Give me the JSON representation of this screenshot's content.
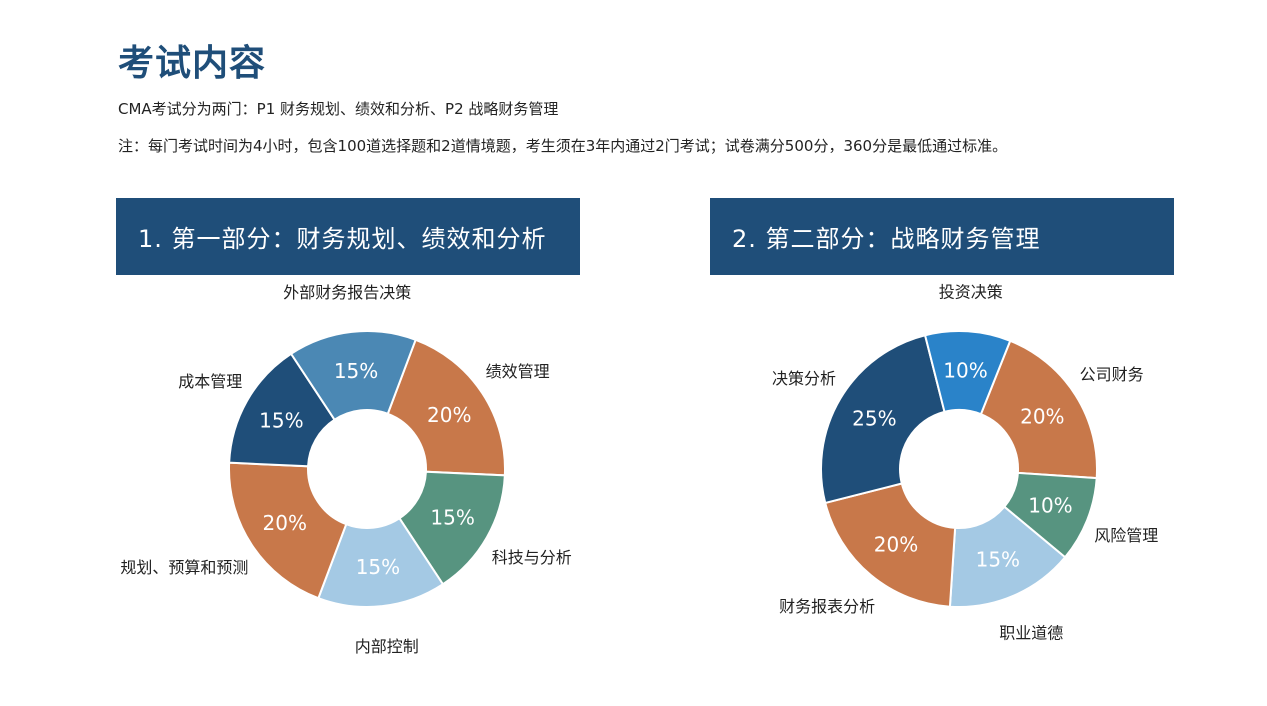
{
  "page": {
    "title": "考试内容",
    "intro": "CMA考试分为两门：P1 财务规划、绩效和分析、P2 战略财务管理",
    "note": "注：每门考试时间为4小时，包含100道选择题和2道情境题，考生须在3年内通过2门考试；试卷满分500分，360分是最低通过标准。"
  },
  "chart_data": [
    {
      "type": "pie",
      "variant": "donut",
      "title": "1. 第一部分：财务规划、绩效和分析",
      "slices": [
        {
          "label": "绩效管理",
          "value": 20,
          "display": "20%",
          "color": "#c8784a"
        },
        {
          "label": "科技与分析",
          "value": 15,
          "display": "15%",
          "color": "#579480"
        },
        {
          "label": "内部控制",
          "value": 15,
          "display": "15%",
          "color": "#a4c9e4"
        },
        {
          "label": "规划、预算和预测",
          "value": 20,
          "display": "20%",
          "color": "#c8784a"
        },
        {
          "label": "成本管理",
          "value": 15,
          "display": "15%",
          "color": "#1f4e79"
        },
        {
          "label": "外部财务报告决策",
          "value": 15,
          "display": "15%",
          "color": "#4b88b4"
        }
      ]
    },
    {
      "type": "pie",
      "variant": "donut",
      "title": "2. 第二部分：战略财务管理",
      "slices": [
        {
          "label": "公司财务",
          "value": 20,
          "display": "20%",
          "color": "#c8784a"
        },
        {
          "label": "风险管理",
          "value": 10,
          "display": "10%",
          "color": "#579480"
        },
        {
          "label": "职业道德",
          "value": 15,
          "display": "15%",
          "color": "#a4c9e4"
        },
        {
          "label": "财务报表分析",
          "value": 20,
          "display": "20%",
          "color": "#c8784a"
        },
        {
          "label": "决策分析",
          "value": 25,
          "display": "25%",
          "color": "#1f4e79"
        },
        {
          "label": "投资决策",
          "value": 10,
          "display": "10%",
          "color": "#2a83c9"
        }
      ]
    }
  ]
}
